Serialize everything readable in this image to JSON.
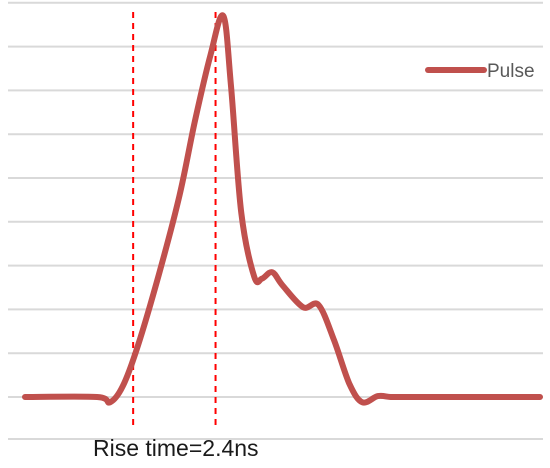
{
  "chart_data": {
    "type": "line",
    "title": "",
    "xlabel": "",
    "ylabel": "",
    "grid": true,
    "legend_position": "top-right",
    "xlim": [
      0,
      10
    ],
    "ylim": [
      0,
      10
    ],
    "gridlines_y": [
      0,
      1,
      2,
      3,
      4,
      5,
      6,
      7,
      8,
      9
    ],
    "series": [
      {
        "name": "Pulse",
        "color": "#c0504d",
        "x": [
          0,
          1.4,
          1.65,
          1.9,
          2.2,
          2.6,
          3.0,
          3.3,
          3.6,
          3.85,
          4.0,
          4.2,
          4.45,
          4.6,
          4.8,
          5.0,
          5.4,
          5.7,
          6.0,
          6.3,
          6.55,
          6.85,
          7.1,
          7.35,
          7.7,
          8.2,
          10
        ],
        "y": [
          0,
          0,
          -0.12,
          0.25,
          1.2,
          2.8,
          4.6,
          6.3,
          7.8,
          8.7,
          7.1,
          4.2,
          2.75,
          2.7,
          2.85,
          2.55,
          2.05,
          2.1,
          1.3,
          0.3,
          -0.12,
          0.02,
          0,
          0,
          0,
          0,
          0
        ]
      }
    ],
    "vlines": [
      {
        "x": 2.1,
        "color": "#ff0000",
        "style": "dashed"
      },
      {
        "x": 3.7,
        "color": "#ff0000",
        "style": "dashed"
      }
    ],
    "annotations": [
      {
        "text": "Rise time=2.4ns"
      }
    ]
  }
}
